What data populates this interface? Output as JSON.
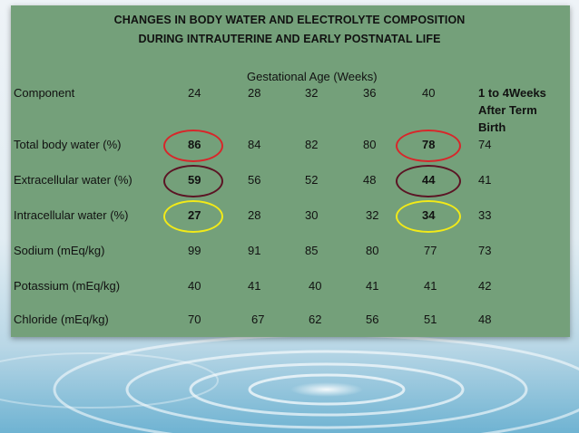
{
  "title_line1": "CHANGES IN BODY WATER AND ELECTROLYTE COMPOSITION",
  "title_line2": "DURING INTRAUTERINE AND EARLY POSTNATAL LIFE",
  "group_header": "Gestational Age (Weeks)",
  "headers": [
    "Component",
    "24",
    "28",
    "32",
    "36",
    "40",
    "1 to 4Weeks",
    "After Term",
    "Birth"
  ],
  "rows": [
    {
      "label": "Total body water (%)",
      "values": [
        "86",
        "84",
        "82",
        "80",
        "78",
        "74"
      ]
    },
    {
      "label": "Extracellular water (%)",
      "values": [
        "59",
        "56",
        "52",
        "48",
        "44",
        "41"
      ]
    },
    {
      "label": "Intracellular water (%)",
      "values": [
        "27",
        "28",
        "30",
        "32",
        "34",
        "33"
      ]
    },
    {
      "label": "Sodium (mEq/kg)",
      "values": [
        "99",
        "91",
        "85",
        "80",
        "77",
        "73"
      ]
    },
    {
      "label": "Potassium (mEq/kg)",
      "values": [
        "40",
        "41",
        "40",
        "41",
        "41",
        "42"
      ]
    },
    {
      "label": "Chloride (mEq/kg)",
      "values": [
        "70",
        "67",
        "62",
        "56",
        "51",
        "48"
      ]
    }
  ],
  "colors": {
    "panel": "#74a07a",
    "circle_red": "#d8262a",
    "circle_dark": "#5b1424",
    "circle_yellow": "#f2ea18"
  }
}
